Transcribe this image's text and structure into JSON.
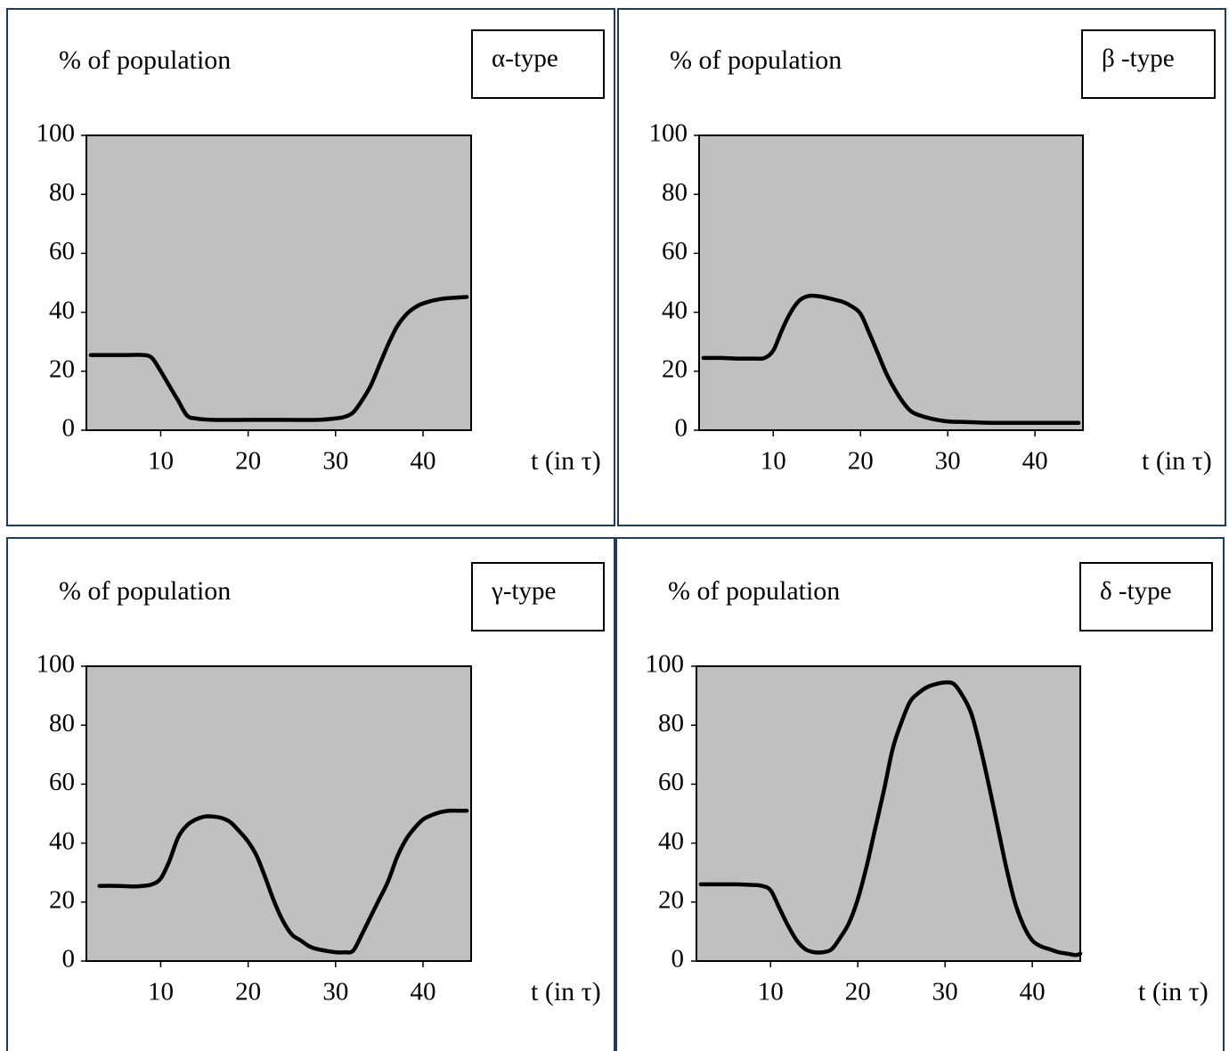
{
  "colors": {
    "plot_background": "#c0c0c0",
    "panel_border": "#1f3a5f",
    "curve": "#000000"
  },
  "chart_data": [
    {
      "type": "line",
      "title": "α-type",
      "ylabel": "% of population",
      "xlabel": "t (in τ)",
      "xlim": [
        1.5,
        45.5
      ],
      "ylim": [
        0,
        100
      ],
      "xticks": [
        "10",
        "20",
        "30",
        "40"
      ],
      "yticks": [
        "0",
        "20",
        "40",
        "60",
        "80",
        "100"
      ],
      "grid": false,
      "series": [
        {
          "x": [
            2,
            4,
            6,
            8,
            9,
            10,
            11,
            12,
            13,
            14,
            16,
            20,
            24,
            28,
            30,
            31,
            32,
            33,
            34,
            35,
            36,
            37,
            38,
            39,
            40,
            42,
            44,
            45
          ],
          "y": [
            25.5,
            25.5,
            25.5,
            25.5,
            24.5,
            20,
            15,
            10,
            5,
            4,
            3.5,
            3.5,
            3.5,
            3.5,
            4,
            4.5,
            6,
            10,
            15,
            22,
            29,
            35,
            39,
            41.5,
            43,
            44.5,
            45,
            45.2
          ]
        }
      ]
    },
    {
      "type": "line",
      "title": "β -type",
      "ylabel": "% of population",
      "xlabel": "t (in τ)",
      "xlim": [
        1.5,
        45.5
      ],
      "ylim": [
        0,
        100
      ],
      "xticks": [
        "10",
        "20",
        "30",
        "40"
      ],
      "yticks": [
        "0",
        "20",
        "40",
        "60",
        "80",
        "100"
      ],
      "grid": false,
      "series": [
        {
          "x": [
            2,
            4,
            6,
            8,
            9,
            10,
            11,
            12,
            13,
            14,
            15,
            16,
            18,
            19,
            20,
            21,
            22,
            23,
            24,
            25,
            26,
            28,
            30,
            32,
            35,
            40,
            45
          ],
          "y": [
            24.5,
            24.5,
            24.3,
            24.3,
            24.5,
            27,
            34,
            40,
            44,
            45.5,
            45.5,
            45,
            43.5,
            42,
            39.5,
            33,
            26,
            19,
            13.5,
            9,
            6,
            4,
            3,
            2.8,
            2.5,
            2.5,
            2.5
          ]
        }
      ]
    },
    {
      "type": "line",
      "title": "γ-type",
      "ylabel": "% of population",
      "xlabel": "t (in τ)",
      "xlim": [
        1.5,
        45.5
      ],
      "ylim": [
        0,
        100
      ],
      "xticks": [
        "10",
        "20",
        "30",
        "40"
      ],
      "yticks": [
        "0",
        "20",
        "40",
        "60",
        "80",
        "100"
      ],
      "grid": false,
      "series": [
        {
          "x": [
            3,
            5,
            7,
            8,
            9,
            10,
            11,
            12,
            13,
            14,
            15,
            16,
            17,
            18,
            19,
            20,
            21,
            22,
            23,
            24,
            25,
            26,
            27,
            28,
            30,
            31,
            32,
            33,
            34,
            35,
            36,
            37,
            38,
            39,
            40,
            41,
            42,
            43,
            44,
            45
          ],
          "y": [
            25.5,
            25.5,
            25.3,
            25.5,
            26,
            28,
            34,
            42,
            46,
            48,
            49,
            49,
            48.5,
            47,
            44,
            40.5,
            35.5,
            28,
            20,
            13.5,
            9,
            7,
            5,
            4,
            3,
            3,
            3.5,
            9,
            15,
            21,
            27,
            35,
            41,
            45,
            48,
            49.5,
            50.5,
            51,
            51,
            51
          ]
        }
      ]
    },
    {
      "type": "line",
      "title": "δ -type",
      "ylabel": "% of population",
      "xlabel": "t (in τ)",
      "xlim": [
        1.5,
        45.5
      ],
      "ylim": [
        0,
        100
      ],
      "xticks": [
        "10",
        "20",
        "30",
        "40"
      ],
      "yticks": [
        "0",
        "20",
        "40",
        "60",
        "80",
        "100"
      ],
      "grid": false,
      "series": [
        {
          "x": [
            2,
            4,
            6,
            8,
            9,
            10,
            11,
            12,
            13,
            14,
            15,
            16,
            17,
            18,
            19,
            20,
            21,
            22,
            23,
            24,
            25,
            26,
            27,
            28,
            29,
            30,
            31,
            32,
            33,
            34,
            35,
            36,
            37,
            38,
            39,
            40,
            41,
            42,
            43,
            44,
            45,
            45.5
          ],
          "y": [
            26,
            26,
            26,
            25.8,
            25.5,
            24,
            18,
            12,
            7,
            4,
            3,
            3,
            4,
            8,
            13,
            21,
            32,
            45,
            58,
            72,
            81,
            88,
            91,
            93,
            94,
            94.5,
            94,
            90,
            84,
            73,
            60,
            46,
            32,
            20,
            12,
            7,
            5,
            4,
            3,
            2.5,
            2,
            2.5
          ]
        }
      ]
    }
  ]
}
